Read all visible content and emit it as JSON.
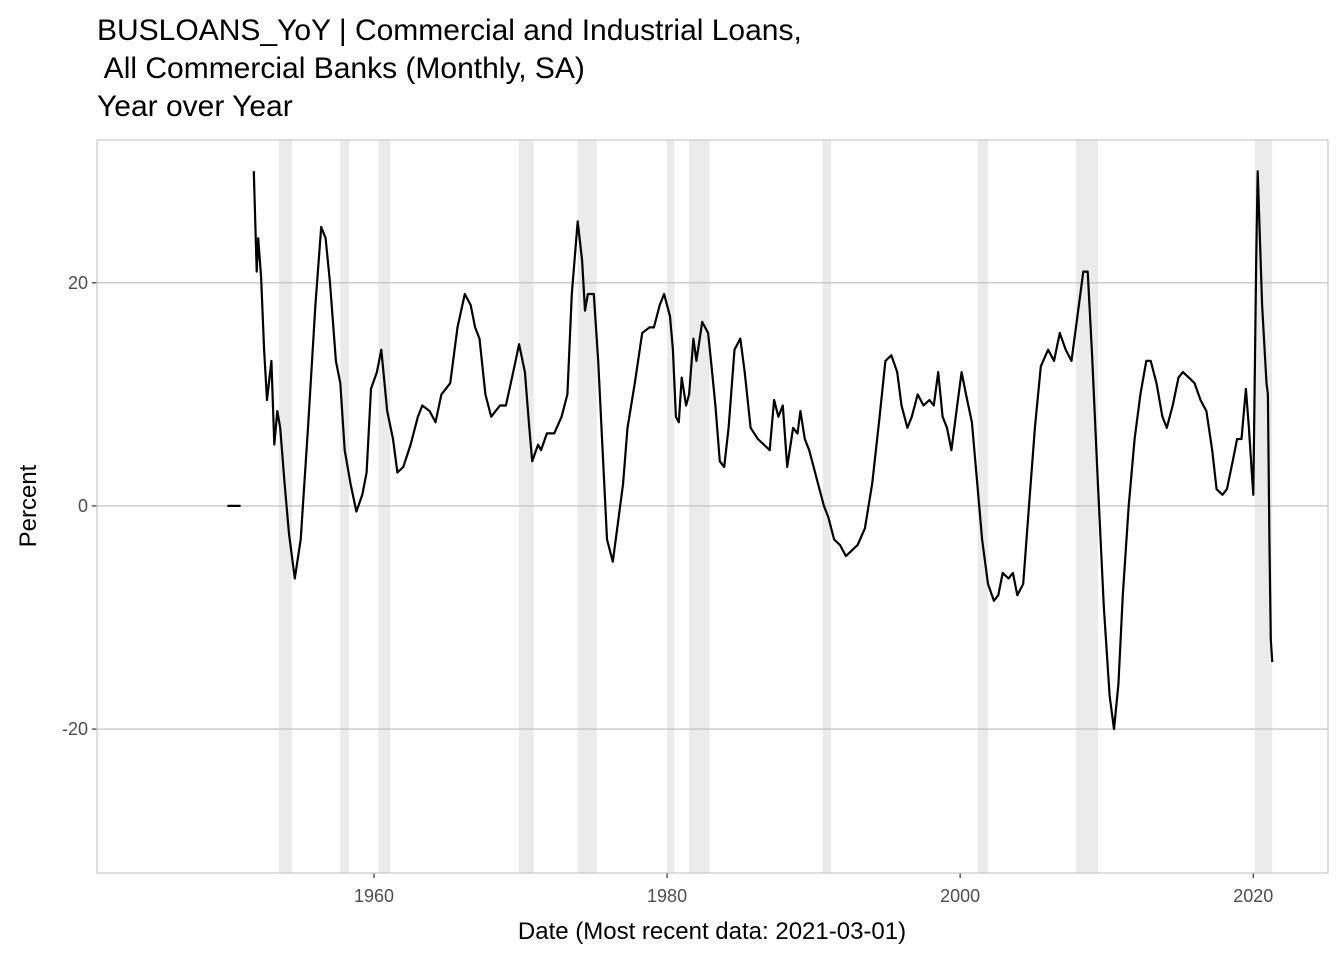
{
  "chart_data": {
    "type": "line",
    "title": [
      "BUSLOANS_YoY | Commercial and Industrial Loans,",
      " All Commercial Banks (Monthly, SA)",
      "Year over Year"
    ],
    "x_label": "Date (Most recent data: 2021-03-01)",
    "y_label": "Percent",
    "xlim": [
      1941.1,
      2025.1
    ],
    "xticks": [
      1960,
      1980,
      2000,
      2020
    ],
    "ylim": [
      -32.9,
      32.8
    ],
    "yticks": [
      -20,
      0,
      20
    ],
    "grid": true,
    "shaded_periods": [
      [
        1953.5,
        1954.4
      ],
      [
        1957.7,
        1958.3
      ],
      [
        1960.3,
        1961.1
      ],
      [
        1969.9,
        1970.9
      ],
      [
        1973.9,
        1975.2
      ],
      [
        1980.0,
        1980.5
      ],
      [
        1981.5,
        1982.9
      ],
      [
        1990.6,
        1991.2
      ],
      [
        2001.2,
        2001.9
      ],
      [
        2007.9,
        2009.4
      ],
      [
        2020.1,
        2021.3
      ]
    ],
    "shade_color": "#ebebeb",
    "x": [
      1950.0,
      1950.9,
      1951.3,
      1951.8,
      1952.0,
      1952.1,
      1952.3,
      1952.5,
      1952.7,
      1953.0,
      1953.2,
      1953.4,
      1953.6,
      1953.9,
      1954.2,
      1954.6,
      1955.0,
      1955.5,
      1956.0,
      1956.4,
      1956.7,
      1957.0,
      1957.4,
      1957.7,
      1958.0,
      1958.4,
      1958.8,
      1959.2,
      1959.5,
      1959.8,
      1960.2,
      1960.5,
      1960.9,
      1961.3,
      1961.6,
      1962.0,
      1962.5,
      1963.0,
      1963.3,
      1963.8,
      1964.2,
      1964.6,
      1965.2,
      1965.7,
      1966.2,
      1966.6,
      1966.9,
      1967.2,
      1967.6,
      1968.0,
      1968.3,
      1968.6,
      1969.0,
      1969.5,
      1969.9,
      1970.3,
      1970.6,
      1970.8,
      1971.2,
      1971.4,
      1971.8,
      1972.3,
      1972.8,
      1973.2,
      1973.5,
      1973.9,
      1974.2,
      1974.4,
      1974.6,
      1975.0,
      1975.3,
      1975.6,
      1975.9,
      1976.3,
      1976.7,
      1977.0,
      1977.3,
      1977.8,
      1978.3,
      1978.8,
      1979.1,
      1979.5,
      1979.8,
      1980.2,
      1980.4,
      1980.6,
      1980.8,
      1981.0,
      1981.3,
      1981.5,
      1981.8,
      1982.0,
      1982.4,
      1982.8,
      1983.0,
      1983.3,
      1983.6,
      1983.9,
      1984.2,
      1984.6,
      1985.0,
      1985.3,
      1985.7,
      1986.2,
      1986.6,
      1987.0,
      1987.3,
      1987.6,
      1987.9,
      1988.2,
      1988.6,
      1988.9,
      1989.1,
      1989.4,
      1989.7,
      1990.0,
      1990.3,
      1990.7,
      1991.0,
      1991.4,
      1991.8,
      1992.2,
      1992.6,
      1993.0,
      1993.5,
      1994.0,
      1994.5,
      1994.9,
      1995.3,
      1995.7,
      1996.0,
      1996.4,
      1996.7,
      1997.1,
      1997.5,
      1997.9,
      1998.2,
      1998.5,
      1998.8,
      1999.1,
      1999.4,
      1999.8,
      2000.1,
      2000.4,
      2000.8,
      2001.1,
      2001.5,
      2001.9,
      2002.3,
      2002.6,
      2002.9,
      2003.3,
      2003.6,
      2003.9,
      2004.3,
      2004.7,
      2005.1,
      2005.5,
      2006.0,
      2006.4,
      2006.8,
      2007.2,
      2007.6,
      2008.0,
      2008.4,
      2008.7,
      2009.0,
      2009.4,
      2009.8,
      2010.2,
      2010.5,
      2010.8,
      2011.1,
      2011.5,
      2011.9,
      2012.3,
      2012.7,
      2013.0,
      2013.4,
      2013.8,
      2014.1,
      2014.5,
      2014.9,
      2015.2,
      2015.6,
      2016.0,
      2016.4,
      2016.8,
      2017.2,
      2017.5,
      2017.9,
      2018.2,
      2018.6,
      2018.9,
      2019.2,
      2019.5,
      2019.7,
      2019.9,
      2020.0,
      2020.2,
      2020.3,
      2020.6,
      2020.9,
      2021.0,
      2021.1,
      2021.2,
      2021.3
    ],
    "series": [
      {
        "name": "BUSLOANS_YoY",
        "color": "#000000",
        "values": [
          0,
          0,
          null,
          30,
          21,
          24,
          20.5,
          14,
          9.5,
          13,
          5.5,
          8.5,
          7,
          2,
          -2.5,
          -6.5,
          -3,
          7,
          18,
          25,
          24,
          20,
          13,
          11,
          5,
          2,
          -0.5,
          1,
          3,
          10.5,
          12,
          14,
          8.5,
          6,
          3,
          3.5,
          5.5,
          8,
          9,
          8.5,
          7.5,
          10,
          11,
          16,
          19,
          18,
          16,
          15,
          10,
          8,
          8.5,
          9,
          9,
          12,
          14.5,
          12,
          7,
          4,
          5.5,
          5,
          6.5,
          6.5,
          8,
          10,
          19,
          25.5,
          22,
          17.5,
          19,
          19,
          13,
          5,
          -3,
          -5,
          -1,
          2,
          7,
          11,
          15.5,
          16,
          16,
          18,
          19,
          17,
          14,
          8,
          7.5,
          11.5,
          9,
          10,
          15,
          13,
          16.5,
          15.5,
          13,
          9,
          4,
          3.5,
          7,
          14,
          15,
          12,
          7,
          6,
          5.5,
          5,
          9.5,
          8,
          9,
          3.5,
          7,
          6.5,
          8.5,
          6,
          5,
          3.5,
          2,
          0,
          -1,
          -3,
          -3.5,
          -4.5,
          -4,
          -3.5,
          -2,
          2,
          8,
          13,
          13.5,
          12,
          9,
          7,
          8,
          10,
          9,
          9.5,
          9,
          12,
          8,
          7,
          5,
          9,
          12,
          10,
          7.5,
          3,
          -3,
          -7,
          -8.5,
          -8,
          -6,
          -6.5,
          -6,
          -8,
          -7,
          0,
          7,
          12.5,
          14,
          13,
          15.5,
          14,
          13,
          17,
          21,
          21,
          13.5,
          2,
          -9,
          -17,
          -20,
          -16,
          -8,
          0,
          6,
          10,
          13,
          13,
          11,
          8,
          7,
          9,
          11.5,
          12,
          11.5,
          11,
          9.5,
          8.5,
          5,
          1.5,
          1,
          1.5,
          4,
          6,
          6,
          10.5,
          7,
          3,
          1,
          22,
          30,
          18,
          11,
          10,
          -3,
          -12,
          -14
        ]
      }
    ]
  }
}
